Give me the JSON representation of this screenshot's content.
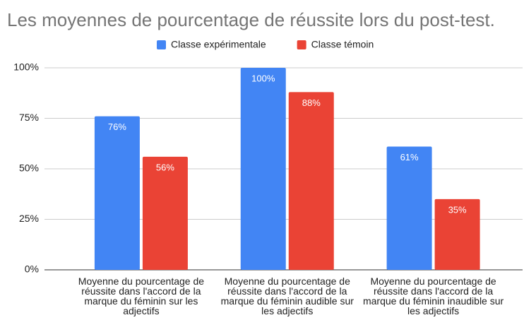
{
  "chart_data": {
    "type": "bar",
    "title": "Les moyennes de pourcentage de réussite lors du post-test.",
    "categories": [
      "Moyenne du pourcentage de réussite dans l'accord de la marque du féminin sur les adjectifs",
      "Moyenne du pourcentage de réussite dans l'accord de la marque du féminin audible sur les adjectifs",
      "Moyenne du pourcentage de réussite dans l'accord de la marque du féminin inaudible sur les adjectifs"
    ],
    "series": [
      {
        "name": "Classe expérimentale",
        "color": "#4285f4",
        "values": [
          76,
          100,
          61
        ],
        "value_labels": [
          "76%",
          "100%",
          "61%"
        ]
      },
      {
        "name": "Classe témoin",
        "color": "#ea4335",
        "values": [
          56,
          88,
          35
        ],
        "value_labels": [
          "56%",
          "88%",
          "35%"
        ]
      }
    ],
    "ylim": [
      0,
      100
    ],
    "yticks": [
      {
        "value": 0,
        "label": "0%"
      },
      {
        "value": 25,
        "label": "25%"
      },
      {
        "value": 50,
        "label": "50%"
      },
      {
        "value": 75,
        "label": "75%"
      },
      {
        "value": 100,
        "label": "100%"
      }
    ],
    "grid": true,
    "legend": "top"
  }
}
